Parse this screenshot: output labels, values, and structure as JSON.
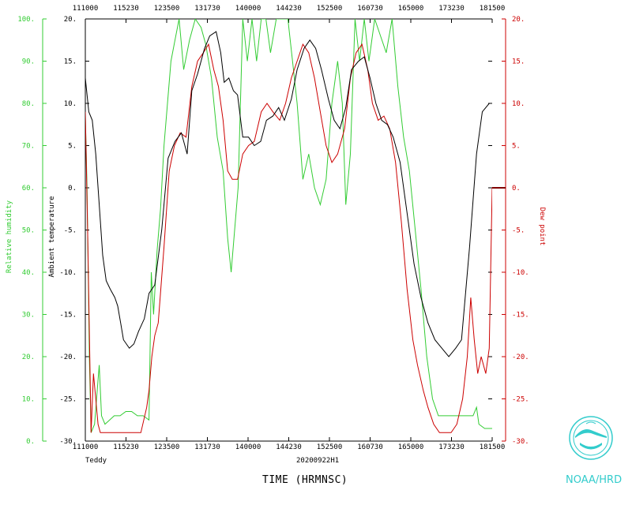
{
  "chart_data": {
    "type": "line",
    "storm_name": "Teddy",
    "flight_id": "20200922H1",
    "xlabel": "TIME (HRMNSC)",
    "x_ticks": [
      "111000",
      "115230",
      "123500",
      "131730",
      "140000",
      "144230",
      "152500",
      "160730",
      "165000",
      "173230",
      "181500"
    ],
    "left_axis": {
      "label": "Ambient temperature",
      "range": [
        -30,
        20
      ],
      "ticks": [
        20,
        15,
        10,
        5,
        0,
        -5,
        -10,
        -15,
        -20,
        -25,
        -30
      ],
      "color": "#000000"
    },
    "rh_axis": {
      "label": "Relative humidity",
      "range": [
        0,
        100
      ],
      "ticks": [
        100,
        90,
        80,
        70,
        60,
        50,
        40,
        30,
        20,
        10,
        0
      ],
      "color": "#33cc33"
    },
    "right_axis": {
      "label": "Dew point",
      "range": [
        -30,
        20
      ],
      "ticks": [
        20,
        15,
        10,
        5,
        0,
        -5,
        -10,
        -15,
        -20,
        -25,
        -30
      ],
      "color": "#cc0000"
    },
    "series": [
      {
        "name": "Ambient temperature",
        "axis": "left",
        "color": "#000000",
        "points": [
          [
            0.0,
            13
          ],
          [
            0.3,
            11
          ],
          [
            0.6,
            9
          ],
          [
            1.2,
            8
          ],
          [
            1.8,
            4
          ],
          [
            2.4,
            -2
          ],
          [
            3.0,
            -8
          ],
          [
            3.6,
            -11
          ],
          [
            4.3,
            -12
          ],
          [
            5.1,
            -13
          ],
          [
            5.6,
            -14
          ],
          [
            6.1,
            -16
          ],
          [
            6.6,
            -18
          ],
          [
            7.6,
            -19
          ],
          [
            8.4,
            -18.5
          ],
          [
            9.2,
            -17
          ],
          [
            10.2,
            -15.5
          ],
          [
            11.0,
            -12.5
          ],
          [
            12.0,
            -11.5
          ],
          [
            13.2,
            -5
          ],
          [
            14.3,
            3.5
          ],
          [
            15.5,
            5.5
          ],
          [
            16.6,
            6.5
          ],
          [
            17.6,
            4
          ],
          [
            18.4,
            11.5
          ],
          [
            19.4,
            13.5
          ],
          [
            20.6,
            16.5
          ],
          [
            21.5,
            18
          ],
          [
            22.6,
            18.5
          ],
          [
            23.4,
            16
          ],
          [
            24.0,
            12.5
          ],
          [
            24.8,
            13
          ],
          [
            25.6,
            11.5
          ],
          [
            26.3,
            11
          ],
          [
            27.2,
            6
          ],
          [
            28.2,
            6
          ],
          [
            29.2,
            5
          ],
          [
            30.3,
            5.5
          ],
          [
            31.3,
            8
          ],
          [
            32.4,
            8.5
          ],
          [
            33.4,
            9.5
          ],
          [
            34.4,
            8
          ],
          [
            35.6,
            10.5
          ],
          [
            36.6,
            14
          ],
          [
            37.8,
            16.5
          ],
          [
            38.8,
            17.5
          ],
          [
            39.8,
            16.5
          ],
          [
            40.8,
            14
          ],
          [
            42.0,
            10.5
          ],
          [
            43.0,
            8
          ],
          [
            44.0,
            7
          ],
          [
            45.0,
            9.5
          ],
          [
            46.0,
            14
          ],
          [
            47.2,
            15
          ],
          [
            48.2,
            15.5
          ],
          [
            49.2,
            13
          ],
          [
            50.2,
            10
          ],
          [
            51.2,
            8
          ],
          [
            52.2,
            7.5
          ],
          [
            53.2,
            6
          ],
          [
            54.4,
            3
          ],
          [
            55.6,
            -3
          ],
          [
            56.8,
            -9
          ],
          [
            58.0,
            -13
          ],
          [
            59.2,
            -16
          ],
          [
            60.4,
            -18
          ],
          [
            61.6,
            -19
          ],
          [
            62.8,
            -20
          ],
          [
            64.0,
            -19
          ],
          [
            65.0,
            -18
          ],
          [
            66.4,
            -7
          ],
          [
            67.6,
            4
          ],
          [
            68.6,
            9
          ],
          [
            69.8,
            10
          ],
          [
            70.3,
            10
          ]
        ]
      },
      {
        "name": "Dew point",
        "axis": "right",
        "color": "#cc0000",
        "points": [
          [
            0.0,
            9
          ],
          [
            0.4,
            -5
          ],
          [
            1.0,
            -29
          ],
          [
            1.4,
            -22
          ],
          [
            1.8,
            -25
          ],
          [
            2.2,
            -28
          ],
          [
            2.6,
            -29
          ],
          [
            3.6,
            -29
          ],
          [
            4.8,
            -29
          ],
          [
            6.0,
            -29
          ],
          [
            7.2,
            -29
          ],
          [
            8.4,
            -29
          ],
          [
            9.6,
            -29
          ],
          [
            10.6,
            -26
          ],
          [
            11.0,
            -24
          ],
          [
            11.5,
            -20
          ],
          [
            12.0,
            -17.5
          ],
          [
            12.6,
            -16
          ],
          [
            13.6,
            -7
          ],
          [
            14.5,
            2
          ],
          [
            15.4,
            5
          ],
          [
            16.4,
            6.5
          ],
          [
            17.4,
            6
          ],
          [
            18.4,
            12
          ],
          [
            19.4,
            15
          ],
          [
            20.4,
            16
          ],
          [
            21.3,
            17
          ],
          [
            22.2,
            14
          ],
          [
            23.0,
            12
          ],
          [
            23.8,
            8
          ],
          [
            24.6,
            2
          ],
          [
            25.4,
            1
          ],
          [
            26.3,
            1
          ],
          [
            27.2,
            4
          ],
          [
            28.2,
            5
          ],
          [
            29.2,
            5.5
          ],
          [
            30.4,
            9
          ],
          [
            31.4,
            10
          ],
          [
            32.4,
            9
          ],
          [
            33.6,
            8
          ],
          [
            34.6,
            10
          ],
          [
            35.6,
            13
          ],
          [
            36.6,
            15
          ],
          [
            37.6,
            17
          ],
          [
            38.6,
            16
          ],
          [
            39.6,
            13
          ],
          [
            40.6,
            9
          ],
          [
            41.6,
            5
          ],
          [
            42.6,
            3
          ],
          [
            43.6,
            4
          ],
          [
            44.8,
            7
          ],
          [
            45.8,
            13
          ],
          [
            46.8,
            16
          ],
          [
            47.8,
            17
          ],
          [
            48.8,
            14
          ],
          [
            49.6,
            10
          ],
          [
            50.6,
            8
          ],
          [
            51.6,
            8.5
          ],
          [
            52.6,
            7
          ],
          [
            53.6,
            3
          ],
          [
            54.6,
            -4
          ],
          [
            55.6,
            -12
          ],
          [
            56.6,
            -18
          ],
          [
            57.4,
            -21
          ],
          [
            58.4,
            -24
          ],
          [
            59.2,
            -26
          ],
          [
            60.2,
            -28
          ],
          [
            61.2,
            -29
          ],
          [
            62.2,
            -29
          ],
          [
            63.2,
            -29
          ],
          [
            64.2,
            -28
          ],
          [
            65.2,
            -25
          ],
          [
            66.0,
            -20
          ],
          [
            66.6,
            -13
          ],
          [
            67.2,
            -18
          ],
          [
            67.8,
            -22
          ],
          [
            68.4,
            -20
          ],
          [
            69.2,
            -22
          ],
          [
            69.8,
            -19
          ],
          [
            70.3,
            0
          ]
        ]
      },
      {
        "name": "Relative humidity",
        "axis": "rh",
        "color": "#33cc33",
        "points": [
          [
            0.0,
            77
          ],
          [
            0.3,
            60
          ],
          [
            0.7,
            20
          ],
          [
            1.0,
            2
          ],
          [
            1.6,
            4
          ],
          [
            2.4,
            18
          ],
          [
            2.8,
            6
          ],
          [
            3.4,
            4
          ],
          [
            4.2,
            5
          ],
          [
            5.0,
            6
          ],
          [
            6.0,
            6
          ],
          [
            7.0,
            7
          ],
          [
            8.0,
            7
          ],
          [
            9.0,
            6
          ],
          [
            10.0,
            6
          ],
          [
            11.0,
            5
          ],
          [
            11.4,
            40
          ],
          [
            11.8,
            30
          ],
          [
            12.4,
            45
          ],
          [
            13.0,
            55
          ],
          [
            13.6,
            70
          ],
          [
            14.2,
            80
          ],
          [
            14.8,
            90
          ],
          [
            15.5,
            95
          ],
          [
            16.2,
            100
          ],
          [
            17.0,
            88
          ],
          [
            18.0,
            95
          ],
          [
            19.0,
            100
          ],
          [
            20.0,
            98
          ],
          [
            20.8,
            94
          ],
          [
            21.8,
            86
          ],
          [
            22.8,
            72
          ],
          [
            23.8,
            64
          ],
          [
            24.6,
            48
          ],
          [
            25.2,
            40
          ],
          [
            25.8,
            50
          ],
          [
            26.4,
            60
          ],
          [
            27.2,
            100
          ],
          [
            28.0,
            90
          ],
          [
            28.8,
            100
          ],
          [
            29.6,
            90
          ],
          [
            30.4,
            100
          ],
          [
            31.2,
            100
          ],
          [
            32.0,
            92
          ],
          [
            33.0,
            100
          ],
          [
            34.0,
            100
          ],
          [
            35.0,
            100
          ],
          [
            35.8,
            90
          ],
          [
            36.6,
            80
          ],
          [
            37.6,
            62
          ],
          [
            38.6,
            68
          ],
          [
            39.6,
            60
          ],
          [
            40.6,
            56
          ],
          [
            41.6,
            62
          ],
          [
            42.6,
            80
          ],
          [
            43.6,
            90
          ],
          [
            44.4,
            80
          ],
          [
            45.0,
            56
          ],
          [
            45.8,
            68
          ],
          [
            46.6,
            100
          ],
          [
            47.4,
            90
          ],
          [
            48.2,
            100
          ],
          [
            49.0,
            90
          ],
          [
            50.0,
            100
          ],
          [
            51.0,
            96
          ],
          [
            52.0,
            92
          ],
          [
            53.0,
            100
          ],
          [
            54.0,
            84
          ],
          [
            55.0,
            72
          ],
          [
            56.0,
            64
          ],
          [
            57.0,
            50
          ],
          [
            58.0,
            36
          ],
          [
            59.0,
            20
          ],
          [
            60.0,
            10
          ],
          [
            61.0,
            6
          ],
          [
            62.0,
            6
          ],
          [
            63.0,
            6
          ],
          [
            64.0,
            6
          ],
          [
            65.0,
            6
          ],
          [
            66.0,
            6
          ],
          [
            67.0,
            6
          ],
          [
            67.6,
            8
          ],
          [
            68.0,
            4
          ],
          [
            69.0,
            3
          ],
          [
            70.3,
            3
          ]
        ]
      }
    ]
  },
  "credit": "NOAA/HRD"
}
